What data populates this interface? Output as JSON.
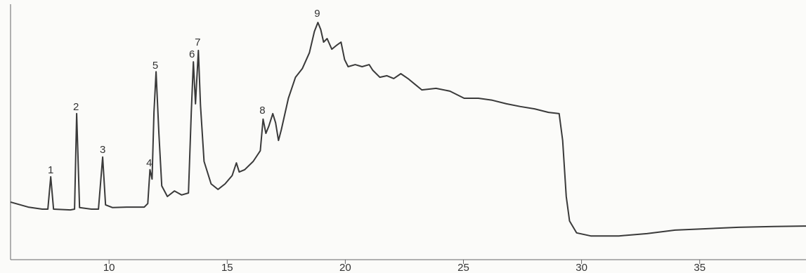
{
  "chart_data": {
    "type": "line",
    "color": "#3a3a3a",
    "xlim": [
      5.83,
      39.5
    ],
    "ylim": [
      0,
      100
    ],
    "xticks": [
      10,
      15,
      20,
      25,
      30,
      35
    ],
    "x": [
      5.83,
      6.58,
      7.17,
      7.41,
      7.53,
      7.65,
      8.36,
      8.54,
      8.63,
      8.75,
      9.26,
      9.55,
      9.73,
      9.85,
      10.15,
      10.74,
      11.49,
      11.64,
      11.73,
      11.82,
      11.9,
      11.99,
      12.11,
      12.23,
      12.47,
      12.77,
      13.07,
      13.36,
      13.48,
      13.57,
      13.66,
      13.78,
      13.87,
      14.02,
      14.32,
      14.61,
      14.91,
      15.21,
      15.39,
      15.51,
      15.74,
      16.1,
      16.4,
      16.52,
      16.64,
      16.76,
      16.93,
      17.05,
      17.17,
      17.29,
      17.59,
      17.89,
      18.18,
      18.48,
      18.69,
      18.84,
      18.96,
      19.08,
      19.23,
      19.43,
      19.61,
      19.82,
      19.97,
      20.12,
      20.42,
      20.71,
      21.01,
      21.16,
      21.46,
      21.76,
      22.05,
      22.35,
      22.65,
      22.95,
      23.24,
      23.84,
      24.43,
      25.03,
      25.63,
      26.22,
      26.82,
      27.41,
      28.01,
      28.6,
      29.05,
      29.2,
      29.35,
      29.49,
      29.79,
      30.39,
      31.58,
      32.77,
      33.96,
      35.15,
      36.64,
      38.13,
      39.5
    ],
    "values": [
      22.8,
      20.8,
      20.0,
      20.0,
      32.8,
      20.0,
      19.7,
      20.0,
      57.8,
      20.6,
      20.0,
      20.0,
      40.6,
      21.7,
      20.6,
      20.8,
      20.8,
      22.2,
      35.6,
      31.9,
      58.3,
      74.4,
      50.0,
      29.2,
      25.0,
      27.2,
      25.6,
      26.4,
      58.3,
      78.3,
      61.7,
      82.8,
      61.1,
      38.9,
      30.0,
      27.8,
      30.0,
      33.3,
      38.3,
      34.7,
      35.6,
      38.9,
      43.1,
      55.6,
      50.0,
      52.8,
      57.8,
      54.2,
      47.2,
      51.4,
      63.9,
      72.2,
      75.6,
      81.9,
      90.3,
      93.9,
      91.1,
      86.1,
      87.5,
      83.3,
      84.7,
      86.1,
      79.2,
      76.4,
      77.2,
      76.4,
      77.2,
      75.0,
      72.2,
      72.8,
      71.7,
      73.6,
      71.7,
      69.4,
      67.2,
      67.8,
      66.7,
      63.9,
      63.9,
      63.1,
      61.7,
      60.6,
      59.7,
      58.3,
      57.8,
      47.2,
      25.0,
      15.3,
      10.6,
      9.4,
      9.4,
      10.3,
      11.7,
      12.2,
      12.8,
      13.1,
      13.3
    ],
    "annotations": [
      {
        "text": "1",
        "x": 7.53,
        "y": 35.3
      },
      {
        "text": "2",
        "x": 8.6,
        "y": 60.3
      },
      {
        "text": "3",
        "x": 9.73,
        "y": 43.3
      },
      {
        "text": "4",
        "x": 11.7,
        "y": 38.1
      },
      {
        "text": "5",
        "x": 11.96,
        "y": 76.7
      },
      {
        "text": "6",
        "x": 13.51,
        "y": 81.1
      },
      {
        "text": "7",
        "x": 13.75,
        "y": 85.8
      },
      {
        "text": "8",
        "x": 16.49,
        "y": 58.9
      },
      {
        "text": "9",
        "x": 18.81,
        "y": 97.2
      }
    ]
  }
}
